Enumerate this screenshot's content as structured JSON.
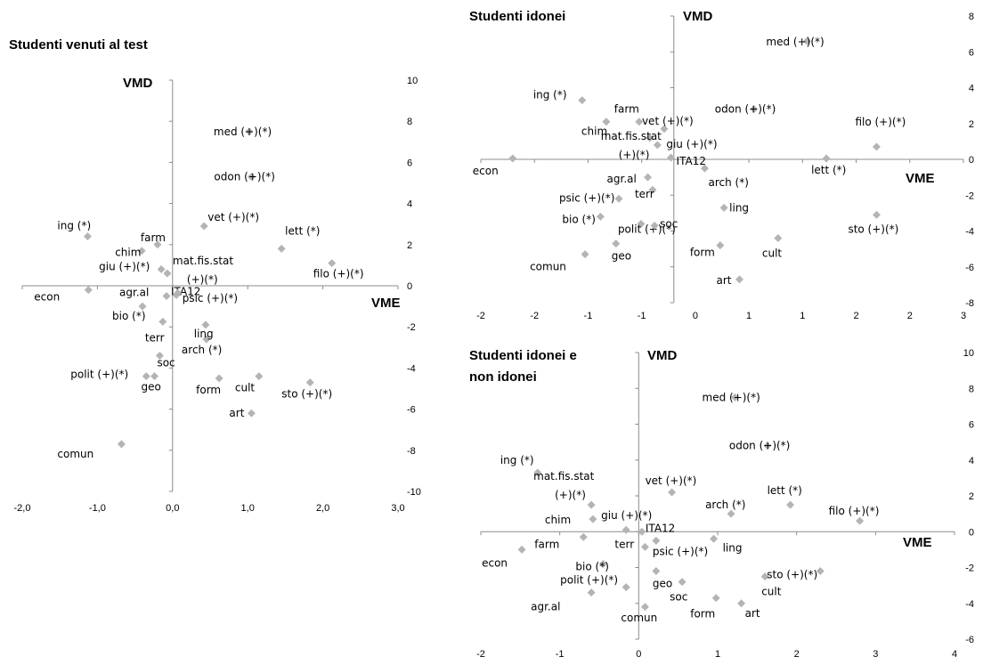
{
  "chart_data": [
    {
      "type": "scatter",
      "title": [
        "Studenti venuti al test"
      ],
      "xlabel": "VME",
      "ylabel": "VMD",
      "xlim": [
        -2.0,
        3.0
      ],
      "ylim": [
        -10,
        10
      ],
      "x_ticks": [
        "-2,0",
        "-1,0",
        "0,0",
        "1,0",
        "2,0",
        "3,0"
      ],
      "y_ticks": [
        "10",
        "8",
        "6",
        "4",
        "2",
        "0",
        "-2",
        "-4",
        "-6",
        "-8",
        "-10"
      ],
      "points": [
        {
          "label": "med (+)(*)",
          "x": 1.02,
          "y": 7.5
        },
        {
          "label": "odon (+)(*)",
          "x": 1.05,
          "y": 5.3
        },
        {
          "label": "vet (+)(*)",
          "x": 0.42,
          "y": 2.9
        },
        {
          "label": "lett (*)",
          "x": 1.45,
          "y": 1.8
        },
        {
          "label": "filo (+)(*)",
          "x": 2.12,
          "y": 1.1
        },
        {
          "label": "ing (*)",
          "x": -1.13,
          "y": 2.4
        },
        {
          "label": "farm",
          "x": -0.2,
          "y": 2.0
        },
        {
          "label": "chim",
          "x": -0.41,
          "y": 1.7
        },
        {
          "label": "mat.fis.stat (+)(*)",
          "x": -0.07,
          "y": 0.6
        },
        {
          "label": "giu (+)(*)",
          "x": -0.15,
          "y": 0.8
        },
        {
          "label": "econ",
          "x": -1.12,
          "y": -0.2
        },
        {
          "label": "agr.al",
          "x": -0.08,
          "y": -0.5
        },
        {
          "label": "ITA12",
          "x": 0.05,
          "y": -0.45
        },
        {
          "label": "psic (+)(*)",
          "x": 0.07,
          "y": -0.35
        },
        {
          "label": "bio (*)",
          "x": -0.4,
          "y": -1.0
        },
        {
          "label": "terr",
          "x": -0.13,
          "y": -1.75
        },
        {
          "label": "ling",
          "x": 0.45,
          "y": -2.6
        },
        {
          "label": "arch (*)",
          "x": 0.44,
          "y": -1.9
        },
        {
          "label": "soc",
          "x": -0.17,
          "y": -3.4
        },
        {
          "label": "polit (+)(*)",
          "x": -0.35,
          "y": -4.4
        },
        {
          "label": "geo",
          "x": -0.24,
          "y": -4.4
        },
        {
          "label": "form",
          "x": 0.62,
          "y": -4.5
        },
        {
          "label": "cult",
          "x": 1.15,
          "y": -4.4
        },
        {
          "label": "sto (+)(*)",
          "x": 1.83,
          "y": -4.7
        },
        {
          "label": "art",
          "x": 1.05,
          "y": -6.2
        },
        {
          "label": "comun",
          "x": -0.68,
          "y": -7.7
        }
      ]
    },
    {
      "type": "scatter",
      "title": [
        "Studenti idonei"
      ],
      "xlabel": "VME",
      "ylabel": "VMD",
      "xlim": [
        -2,
        3
      ],
      "ylim": [
        -8,
        8
      ],
      "x_ticks": [
        "-2",
        "-2",
        "-1",
        "-1",
        "0",
        "1",
        "1",
        "2",
        "2",
        "3"
      ],
      "y_ticks": [
        "8",
        "6",
        "4",
        "2",
        "0",
        "-2",
        "-4",
        "-6",
        "-8"
      ],
      "points": [
        {
          "label": "med (+)(*)",
          "x": 1.38,
          "y": 6.6
        },
        {
          "label": "ing (*)",
          "x": -0.95,
          "y": 3.3
        },
        {
          "label": "farm",
          "x": -0.36,
          "y": 2.1
        },
        {
          "label": "vet (+)(*)",
          "x": -0.1,
          "y": 1.7
        },
        {
          "label": "odon (+)(*)",
          "x": 0.83,
          "y": 2.8
        },
        {
          "label": "chim",
          "x": -0.7,
          "y": 2.1
        },
        {
          "label": "mat.fis.stat (+)(*)",
          "x": -0.25,
          "y": 1.2
        },
        {
          "label": "giu (+)(*)",
          "x": -0.17,
          "y": 0.8
        },
        {
          "label": "filo (+)(*)",
          "x": 2.1,
          "y": 0.7
        },
        {
          "label": "ITA12",
          "x": -0.03,
          "y": 0.1
        },
        {
          "label": "econ",
          "x": -1.67,
          "y": 0.05
        },
        {
          "label": "lett (*)",
          "x": 1.58,
          "y": 0.05
        },
        {
          "label": "arch (*)",
          "x": 0.32,
          "y": -0.5
        },
        {
          "label": "agr.al",
          "x": -0.27,
          "y": -1.0
        },
        {
          "label": "terr",
          "x": -0.22,
          "y": -1.7
        },
        {
          "label": "psic (+)(*)",
          "x": -0.57,
          "y": -2.2
        },
        {
          "label": "ling",
          "x": 0.52,
          "y": -2.7
        },
        {
          "label": "bio (*)",
          "x": -0.76,
          "y": -3.2
        },
        {
          "label": "sto (+)(*)",
          "x": 2.1,
          "y": -3.1
        },
        {
          "label": "polit (+)(*)",
          "x": -0.34,
          "y": -3.6
        },
        {
          "label": "soc",
          "x": -0.2,
          "y": -3.7
        },
        {
          "label": "cult",
          "x": 1.08,
          "y": -4.4
        },
        {
          "label": "geo",
          "x": -0.6,
          "y": -4.7
        },
        {
          "label": "form",
          "x": 0.48,
          "y": -4.8
        },
        {
          "label": "comun",
          "x": -0.92,
          "y": -5.3
        },
        {
          "label": "art",
          "x": 0.68,
          "y": -6.7
        }
      ]
    },
    {
      "type": "scatter",
      "title": [
        "Studenti idonei e",
        "non idonei"
      ],
      "xlabel": "VME",
      "ylabel": "VMD",
      "xlim": [
        -2,
        4
      ],
      "ylim": [
        -6,
        10
      ],
      "x_ticks": [
        "-2",
        "-1",
        "0",
        "1",
        "2",
        "3",
        "4"
      ],
      "y_ticks": [
        "10",
        "8",
        "6",
        "4",
        "2",
        "0",
        "-2",
        "-4",
        "-6"
      ],
      "points": [
        {
          "label": "med (+)(*)",
          "x": 1.22,
          "y": 7.5
        },
        {
          "label": "odon (+)(*)",
          "x": 1.63,
          "y": 4.8
        },
        {
          "label": "ing (*)",
          "x": -1.28,
          "y": 3.3
        },
        {
          "label": "mat.fis.stat (+)(*)",
          "x": -0.6,
          "y": 1.5
        },
        {
          "label": "vet (+)(*)",
          "x": 0.42,
          "y": 2.2
        },
        {
          "label": "lett (*)",
          "x": 1.92,
          "y": 1.5
        },
        {
          "label": "arch (*)",
          "x": 1.17,
          "y": 1.0
        },
        {
          "label": "filo (+)(*)",
          "x": 2.8,
          "y": 0.6
        },
        {
          "label": "chim",
          "x": -0.58,
          "y": 0.7
        },
        {
          "label": "giu (+)(*)",
          "x": -0.16,
          "y": 0.1
        },
        {
          "label": "ITA12",
          "x": 0.04,
          "y": 0.0
        },
        {
          "label": "farm",
          "x": -0.7,
          "y": -0.3
        },
        {
          "label": "ling",
          "x": 0.95,
          "y": -0.4
        },
        {
          "label": "psic (+)(*)",
          "x": 0.22,
          "y": -0.5
        },
        {
          "label": "econ",
          "x": -1.48,
          "y": -1.0
        },
        {
          "label": "terr",
          "x": 0.08,
          "y": -0.85
        },
        {
          "label": "bio (*)",
          "x": -0.45,
          "y": -1.8
        },
        {
          "label": "polit (+)(*)",
          "x": -0.16,
          "y": -3.1
        },
        {
          "label": "soc",
          "x": 0.55,
          "y": -2.8
        },
        {
          "label": "geo",
          "x": 0.22,
          "y": -2.2
        },
        {
          "label": "cult",
          "x": 1.6,
          "y": -2.5
        },
        {
          "label": "sto (+)(*)",
          "x": 2.3,
          "y": -2.2
        },
        {
          "label": "agr.al",
          "x": -0.6,
          "y": -3.4
        },
        {
          "label": "form",
          "x": 0.98,
          "y": -3.7
        },
        {
          "label": "art",
          "x": 1.3,
          "y": -4.0
        },
        {
          "label": "comun",
          "x": 0.08,
          "y": -4.2
        }
      ]
    }
  ]
}
